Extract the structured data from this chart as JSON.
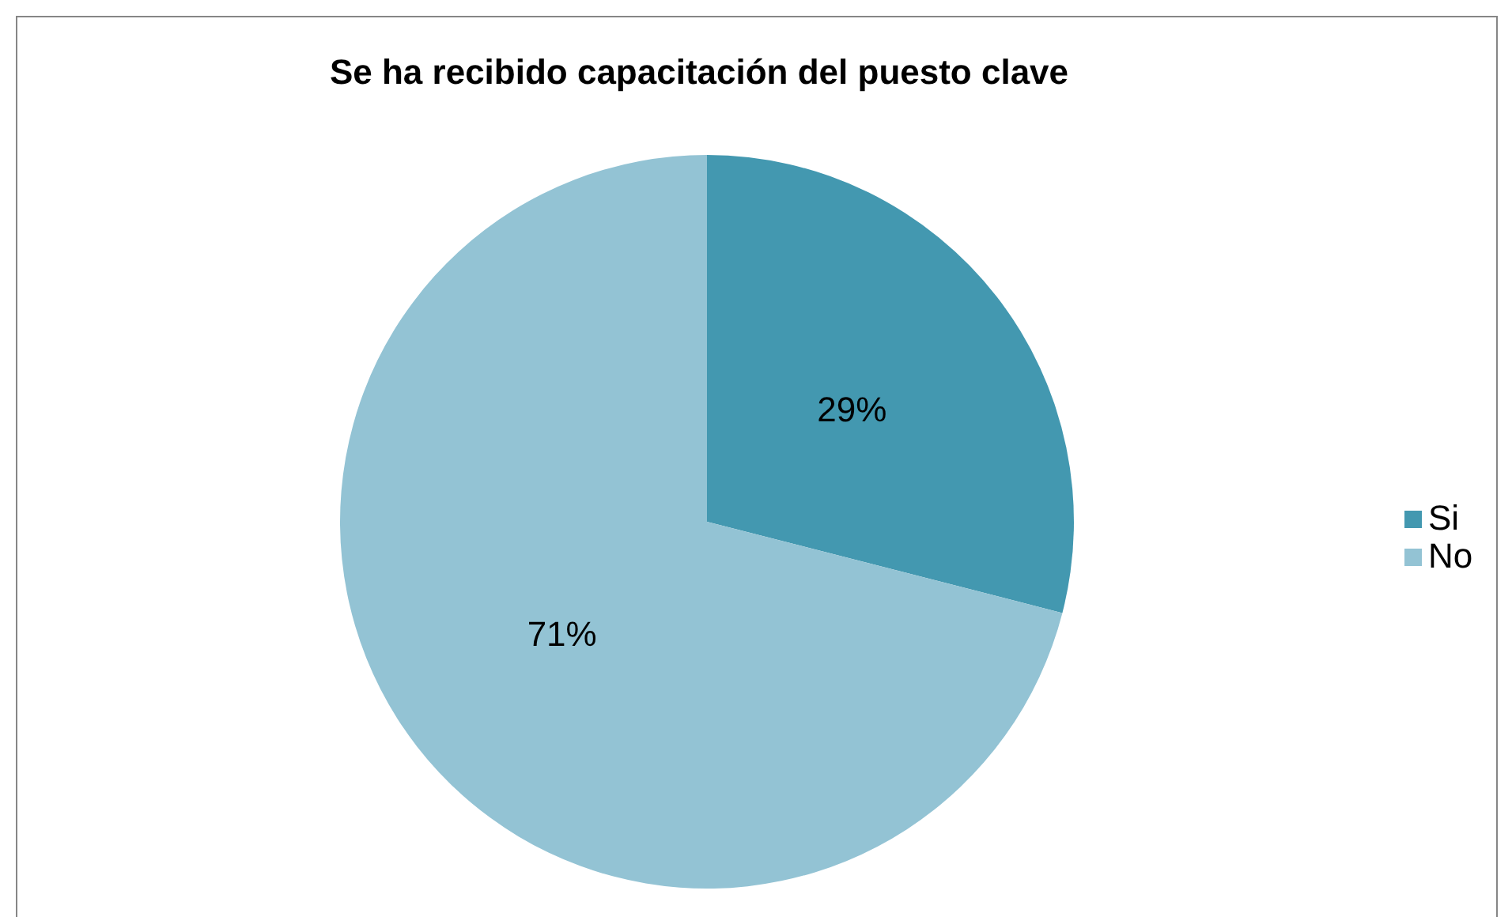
{
  "chart_data": {
    "type": "pie",
    "title": "Se ha recibido capacitación del puesto clave",
    "categories": [
      "Si",
      "No"
    ],
    "values": [
      29,
      71
    ],
    "colors": [
      "#4398b0",
      "#93c3d4"
    ],
    "value_labels": [
      "29%",
      "71%"
    ],
    "legend": "right"
  }
}
